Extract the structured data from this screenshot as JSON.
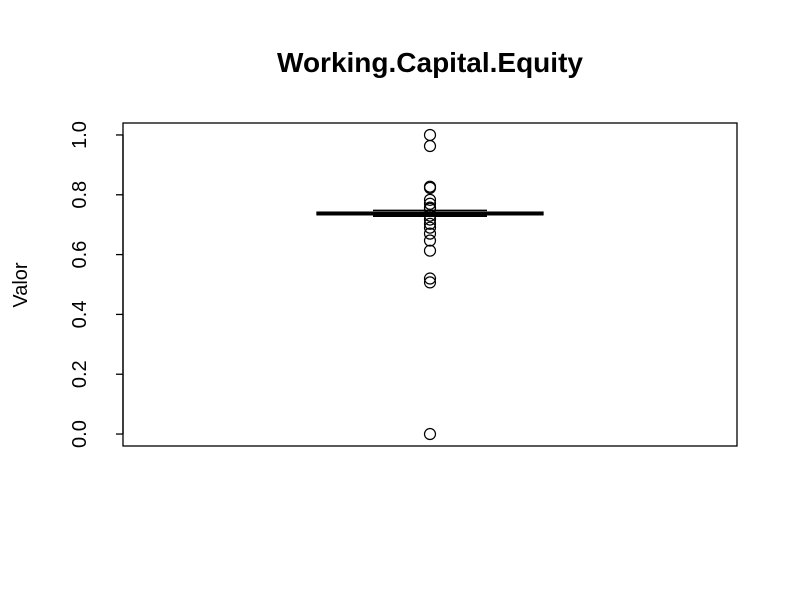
{
  "chart_data": {
    "type": "box",
    "title": "Working.Capital.Equity",
    "y_label": "Valor",
    "whisker_low": 0.728,
    "q1": 0.733,
    "median": 0.737,
    "q3": 0.742,
    "whisker_high": 0.748,
    "outliers": [
      1.0,
      0.963,
      0.827,
      0.823,
      0.783,
      0.77,
      0.757,
      0.753,
      0.73,
      0.717,
      0.703,
      0.69,
      0.67,
      0.647,
      0.613,
      0.52,
      0.507,
      0.0
    ],
    "ylim": [
      -0.04,
      1.04
    ],
    "yticks": [
      {
        "value": 0,
        "label": "0.0"
      },
      0.2,
      0.4,
      0.6,
      0.8,
      {
        "value": 1,
        "label": "1.0"
      }
    ],
    "color": "#000000"
  }
}
